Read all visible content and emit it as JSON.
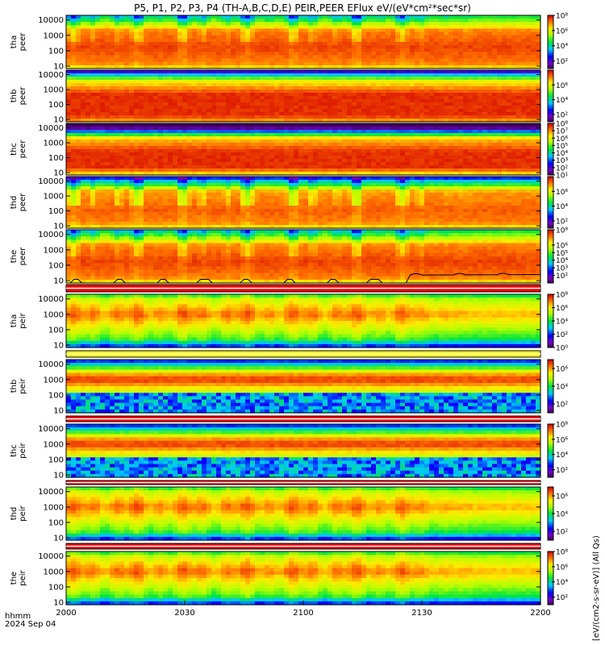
{
  "title": "P5, P1, P2, P3, P4 (TH-A,B,C,D,E) PEIR,PEER EFlux eV/(eV*cm²*sec*sr)",
  "colors": {
    "background": "#ffffff",
    "frame": "#000000",
    "band_red": "#ff0000",
    "band_yellow": "#ffff00",
    "potential_line": "#000000"
  },
  "chart_data": {
    "type": "heatmap",
    "x_axis": {
      "label_line1": "hhmm",
      "label_line2": "2024 Sep 04",
      "ticks": [
        "2000",
        "2030",
        "2100",
        "2130",
        "2200"
      ],
      "range": [
        "2000",
        "2200"
      ]
    },
    "y_axis": {
      "scale": "log",
      "ticks": [
        "10000",
        "1000",
        "100",
        "10"
      ],
      "range": [
        7,
        20000
      ]
    },
    "colorbar": {
      "scale": "log",
      "side_label": "[eV/(cm2-s-sr-eV)] (All Qs)",
      "colormap": "rainbow (purple-blue-cyan-green-yellow-red)"
    },
    "panels": [
      {
        "name": "tha_peer",
        "label_line1": "tha",
        "label_line2": "peer",
        "style": "peer_high",
        "cb_ticks": [
          "10⁸",
          "10⁶",
          "10⁴",
          "10²"
        ],
        "cb_range": [
          1,
          8
        ],
        "band_below": "",
        "potential_line": false
      },
      {
        "name": "thb_peer",
        "label_line1": "thb",
        "label_line2": "peer",
        "style": "peer_mid",
        "cb_ticks": [
          "10⁶",
          "10⁴",
          "10²"
        ],
        "cb_range": [
          1,
          8
        ],
        "band_below": "",
        "potential_line": false
      },
      {
        "name": "thc_peer",
        "label_line1": "thc",
        "label_line2": "peer",
        "style": "peer_flat",
        "cb_ticks": [
          "10⁸",
          "10⁷",
          "10⁶",
          "10⁵",
          "10⁴",
          "10³",
          "10²",
          "10¹"
        ],
        "cb_range": [
          1,
          8
        ],
        "band_below": "",
        "potential_line": false
      },
      {
        "name": "thd_peer",
        "label_line1": "thd",
        "label_line2": "peer",
        "style": "peer_var",
        "cb_ticks": [
          "10⁶",
          "10⁴",
          "10²"
        ],
        "cb_range": [
          1,
          8
        ],
        "band_below": "",
        "potential_line": false
      },
      {
        "name": "the_peer",
        "label_line1": "the",
        "label_line2": "peer",
        "style": "peer_high",
        "cb_ticks": [
          "10⁸",
          "10⁶",
          "10⁵",
          "10⁴",
          "10³",
          "10²"
        ],
        "cb_range": [
          1,
          8
        ],
        "band_below": "red",
        "potential_line": true
      },
      {
        "name": "tha_peir",
        "label_line1": "tha",
        "label_line2": "peir",
        "style": "peir_var",
        "cb_ticks": [
          "10⁸",
          "10⁶",
          "10⁴",
          "10²",
          "10⁰"
        ],
        "cb_range": [
          0,
          8
        ],
        "band_below": "yellow",
        "potential_line": false
      },
      {
        "name": "thb_peir",
        "label_line1": "thb",
        "label_line2": "peir",
        "style": "peir_band",
        "cb_ticks": [
          "10⁶",
          "10⁴",
          "10²"
        ],
        "cb_range": [
          1,
          7
        ],
        "band_below": "red",
        "potential_line": false
      },
      {
        "name": "thc_peir",
        "label_line1": "thc",
        "label_line2": "peir",
        "style": "peir_band",
        "cb_ticks": [
          "10⁸",
          "10⁶",
          "10⁴",
          "10²"
        ],
        "cb_range": [
          1,
          8
        ],
        "band_below": "red",
        "potential_line": false
      },
      {
        "name": "thd_peir",
        "label_line1": "thd",
        "label_line2": "peir",
        "style": "peir_var",
        "cb_ticks": [
          "10⁶",
          "10⁴",
          "10²"
        ],
        "cb_range": [
          1,
          7
        ],
        "band_below": "red",
        "potential_line": false
      },
      {
        "name": "the_peir",
        "label_line1": "the",
        "label_line2": "peir",
        "style": "peir_var",
        "cb_ticks": [
          "10⁸",
          "10⁶",
          "10⁴",
          "10²"
        ],
        "cb_range": [
          1,
          8
        ],
        "band_below": "",
        "potential_line": false
      }
    ]
  }
}
